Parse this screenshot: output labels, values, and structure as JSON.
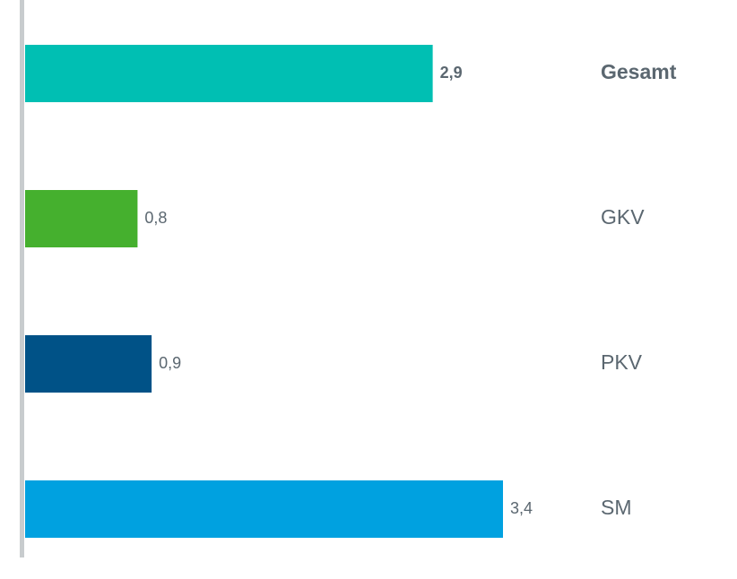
{
  "chart_data": {
    "type": "bar",
    "orientation": "horizontal",
    "categories": [
      "Gesamt",
      "GKV",
      "PKV",
      "SM"
    ],
    "values": [
      2.9,
      0.8,
      0.9,
      3.4
    ],
    "value_labels": [
      "2,9",
      "0,8",
      "0,9",
      "3,4"
    ],
    "colors": [
      "#00bfb3",
      "#45b02e",
      "#005287",
      "#00a1e0"
    ]
  }
}
